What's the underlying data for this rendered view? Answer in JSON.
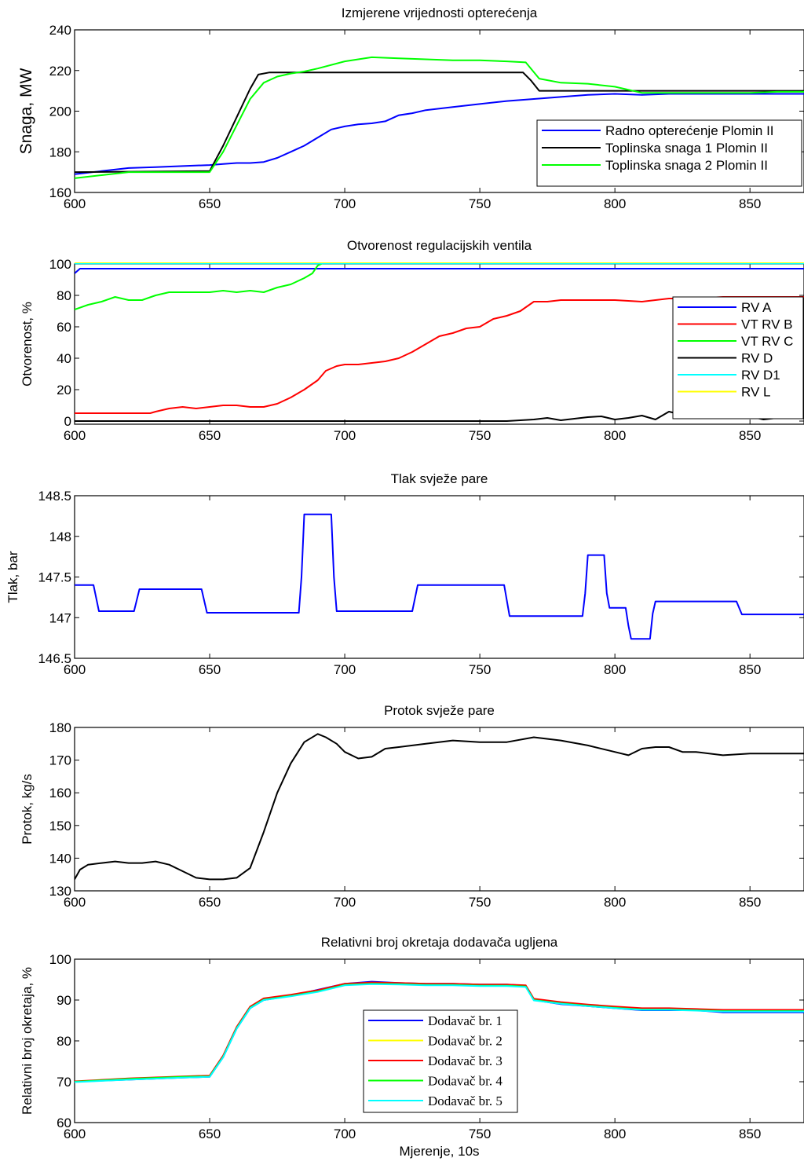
{
  "chart_data": [
    {
      "type": "line",
      "title": "Izmjerene vrijednosti opterećenja",
      "ylabel": "Snaga, MW",
      "xlabel": "",
      "xlim": [
        600,
        870
      ],
      "ylim": [
        160,
        240
      ],
      "xticks": [
        600,
        650,
        700,
        750,
        800,
        850
      ],
      "yticks": [
        160,
        180,
        200,
        220,
        240
      ],
      "grid": false,
      "legend": "lower-right",
      "series": [
        {
          "name": "Radno opterećenje Plomin II",
          "color": "#0000ff",
          "x": [
            600,
            610,
            620,
            630,
            640,
            650,
            655,
            660,
            665,
            670,
            675,
            680,
            685,
            690,
            695,
            700,
            705,
            710,
            715,
            720,
            725,
            730,
            740,
            750,
            760,
            770,
            780,
            790,
            800,
            810,
            820,
            830,
            840,
            850,
            860,
            870
          ],
          "y": [
            169,
            170.5,
            172,
            172.5,
            173,
            173.5,
            174,
            174.5,
            174.5,
            175,
            177,
            180,
            183,
            187,
            191,
            192.5,
            193.5,
            194,
            195,
            198,
            199,
            200.5,
            202,
            203.5,
            205,
            206,
            207,
            208,
            208.5,
            208,
            208.5,
            208.5,
            208.5,
            208.5,
            208.5,
            208.5
          ]
        },
        {
          "name": "Toplinska snaga 1 Plomin II",
          "color": "#000000",
          "x": [
            600,
            650,
            655,
            660,
            665,
            668,
            672,
            700,
            766,
            769,
            772,
            870
          ],
          "y": [
            170,
            170.5,
            183,
            197,
            211,
            218,
            219,
            219,
            219,
            215,
            210,
            210
          ]
        },
        {
          "name": "Toplinska snaga 2 Plomin II",
          "color": "#00ff00",
          "x": [
            600,
            610,
            620,
            640,
            650,
            655,
            660,
            665,
            670,
            675,
            680,
            685,
            690,
            700,
            710,
            720,
            730,
            740,
            750,
            760,
            767,
            772,
            780,
            790,
            800,
            810,
            820,
            830,
            840,
            850,
            860,
            870
          ],
          "y": [
            167,
            168.5,
            170,
            170,
            170,
            180,
            193,
            206,
            214,
            217,
            218.5,
            219.5,
            221,
            224.5,
            226.5,
            226,
            225.5,
            225,
            225,
            224.5,
            224,
            216,
            214,
            213.5,
            212,
            209,
            209,
            209,
            209,
            209,
            209.5,
            209.5
          ]
        }
      ]
    },
    {
      "type": "line",
      "title": "Otvorenost regulacijskih ventila",
      "ylabel": "Otvorenost, %",
      "xlabel": "",
      "xlim": [
        600,
        870
      ],
      "ylim": [
        -2,
        100
      ],
      "xticks": [
        600,
        650,
        700,
        750,
        800,
        850
      ],
      "yticks": [
        0,
        20,
        40,
        60,
        80,
        100
      ],
      "grid": false,
      "legend": "right",
      "series": [
        {
          "name": "RV A",
          "color": "#0000ff",
          "x": [
            600,
            602,
            870
          ],
          "y": [
            94,
            97,
            97
          ]
        },
        {
          "name": "VT RV B",
          "color": "#ff0000",
          "x": [
            600,
            610,
            620,
            628,
            630,
            635,
            640,
            645,
            650,
            655,
            660,
            665,
            670,
            675,
            680,
            685,
            690,
            693,
            697,
            700,
            705,
            710,
            715,
            720,
            725,
            730,
            735,
            740,
            745,
            750,
            755,
            760,
            765,
            770,
            775,
            780,
            790,
            800,
            810,
            820,
            830,
            840,
            850,
            860,
            870
          ],
          "y": [
            5,
            5,
            5,
            5,
            6,
            8,
            9,
            8,
            9,
            10,
            10,
            9,
            9,
            11,
            15,
            20,
            26,
            32,
            35,
            36,
            36,
            37,
            38,
            40,
            44,
            49,
            54,
            56,
            59,
            60,
            65,
            67,
            70,
            76,
            76,
            77,
            77,
            77,
            76,
            78,
            78,
            79,
            79,
            79,
            79
          ]
        },
        {
          "name": "VT RV C",
          "color": "#00ff00",
          "x": [
            600,
            605,
            610,
            615,
            620,
            625,
            630,
            635,
            640,
            645,
            650,
            655,
            660,
            665,
            670,
            675,
            680,
            685,
            688,
            690,
            692,
            870
          ],
          "y": [
            71,
            74,
            76,
            79,
            77,
            77,
            80,
            82,
            82,
            82,
            82,
            83,
            82,
            83,
            82,
            85,
            87,
            91,
            94,
            99,
            100.5,
            100.5
          ]
        },
        {
          "name": "RV D",
          "color": "#000000",
          "x": [
            600,
            760,
            765,
            770,
            775,
            780,
            785,
            790,
            795,
            800,
            805,
            810,
            815,
            820,
            825,
            830,
            835,
            840,
            845,
            850,
            855,
            860,
            865,
            870
          ],
          "y": [
            0,
            0,
            0.5,
            1,
            2,
            0.5,
            1.5,
            2.5,
            3,
            1,
            2,
            3.5,
            1,
            6,
            4,
            2,
            3,
            4,
            2,
            3,
            1,
            2,
            4,
            3
          ]
        },
        {
          "name": "RV D1",
          "color": "#00ffff",
          "x": [
            600,
            870
          ],
          "y": [
            100.3,
            100.3
          ]
        },
        {
          "name": "RV L",
          "color": "#ffff00",
          "x": [
            600,
            870
          ],
          "y": [
            101,
            101
          ]
        }
      ]
    },
    {
      "type": "line",
      "title": "Tlak svježe pare",
      "ylabel": "Tlak, bar",
      "xlabel": "",
      "xlim": [
        600,
        870
      ],
      "ylim": [
        146.5,
        148.5
      ],
      "xticks": [
        600,
        650,
        700,
        750,
        800,
        850
      ],
      "yticks": [
        146.5,
        147,
        147.5,
        148,
        148.5
      ],
      "grid": false,
      "series": [
        {
          "name": "",
          "color": "#0000ff",
          "x": [
            600,
            607,
            609,
            622,
            624,
            647,
            649,
            683,
            684,
            685,
            695,
            696,
            697,
            725,
            727,
            759,
            761,
            788,
            789,
            790,
            796,
            797,
            798,
            804,
            805,
            806,
            813,
            814,
            815,
            845,
            847,
            870
          ],
          "y": [
            147.4,
            147.4,
            147.08,
            147.08,
            147.35,
            147.35,
            147.06,
            147.06,
            147.5,
            148.27,
            148.27,
            147.5,
            147.08,
            147.08,
            147.4,
            147.4,
            147.02,
            147.02,
            147.3,
            147.77,
            147.77,
            147.3,
            147.12,
            147.12,
            146.9,
            146.74,
            146.74,
            147.05,
            147.2,
            147.2,
            147.04,
            147.04
          ]
        }
      ]
    },
    {
      "type": "line",
      "title": "Protok svježe pare",
      "ylabel": "Protok, kg/s",
      "xlabel": "",
      "xlim": [
        600,
        870
      ],
      "ylim": [
        130,
        180
      ],
      "xticks": [
        600,
        650,
        700,
        750,
        800,
        850
      ],
      "yticks": [
        130,
        140,
        150,
        160,
        170,
        180
      ],
      "grid": false,
      "series": [
        {
          "name": "",
          "color": "#000000",
          "x": [
            600,
            602,
            605,
            610,
            615,
            620,
            625,
            630,
            635,
            640,
            645,
            650,
            655,
            660,
            665,
            670,
            675,
            680,
            685,
            690,
            693,
            697,
            700,
            705,
            710,
            715,
            720,
            730,
            740,
            750,
            760,
            770,
            780,
            790,
            800,
            805,
            810,
            815,
            820,
            825,
            830,
            840,
            850,
            860,
            870
          ],
          "y": [
            133.5,
            136.5,
            138,
            138.5,
            139,
            138.5,
            138.5,
            139,
            138,
            136,
            134,
            133.5,
            133.5,
            134,
            137,
            148,
            160,
            169,
            175.5,
            178,
            177,
            175,
            172.5,
            170.5,
            171,
            173.5,
            174,
            175,
            176,
            175.5,
            175.5,
            177,
            176,
            174.5,
            172.5,
            171.5,
            173.5,
            174,
            174,
            172.5,
            172.5,
            171.5,
            172,
            172,
            172
          ]
        }
      ]
    },
    {
      "type": "line",
      "title": "Relativni broj okretaja dodavača ugljena",
      "ylabel": "Relativni broj okretaja, %",
      "xlabel": "Mjerenje, 10s",
      "xlim": [
        600,
        870
      ],
      "ylim": [
        60,
        100
      ],
      "xticks": [
        600,
        650,
        700,
        750,
        800,
        850
      ],
      "yticks": [
        60,
        70,
        80,
        90,
        100
      ],
      "grid": false,
      "legend": "bottom-center",
      "series": [
        {
          "name": "Dodavač br. 1",
          "color": "#0000ff",
          "x": [
            600,
            620,
            640,
            650,
            655,
            660,
            665,
            670,
            680,
            690,
            700,
            710,
            720,
            730,
            740,
            750,
            760,
            767,
            770,
            780,
            790,
            800,
            810,
            820,
            830,
            840,
            850,
            860,
            870
          ],
          "y": [
            70,
            70.5,
            71,
            71.2,
            76,
            83,
            88,
            90,
            91,
            92.5,
            94,
            94.5,
            94.2,
            94,
            94,
            93.8,
            93.8,
            93.5,
            90,
            89,
            88.5,
            88,
            87.5,
            87.5,
            87.5,
            87,
            87,
            87,
            87
          ]
        },
        {
          "name": "Dodavač br. 2",
          "color": "#ffff00",
          "x": [
            600,
            620,
            640,
            650,
            655,
            660,
            665,
            670,
            680,
            690,
            700,
            710,
            720,
            730,
            740,
            750,
            760,
            767,
            770,
            780,
            790,
            800,
            810,
            820,
            830,
            840,
            850,
            860,
            870
          ],
          "y": [
            70,
            70.6,
            71.1,
            71.4,
            76.2,
            83.2,
            88.2,
            90.2,
            91.1,
            92.2,
            93.8,
            94.1,
            94,
            93.8,
            93.8,
            93.6,
            93.6,
            93.4,
            90.1,
            89.3,
            88.7,
            88.2,
            87.8,
            87.8,
            87.6,
            87.4,
            87.4,
            87.4,
            87.4
          ]
        },
        {
          "name": "Dodavač br. 3",
          "color": "#ff0000",
          "x": [
            600,
            620,
            640,
            650,
            655,
            660,
            665,
            670,
            680,
            690,
            700,
            710,
            720,
            730,
            740,
            750,
            760,
            767,
            770,
            780,
            790,
            800,
            810,
            820,
            830,
            840,
            850,
            860,
            870
          ],
          "y": [
            70.1,
            70.8,
            71.3,
            71.5,
            76.4,
            83.4,
            88.4,
            90.4,
            91.3,
            92.4,
            94,
            94.3,
            94.2,
            94,
            94,
            93.8,
            93.8,
            93.6,
            90.3,
            89.5,
            88.9,
            88.4,
            88,
            88,
            87.8,
            87.6,
            87.6,
            87.6,
            87.6
          ]
        },
        {
          "name": "Dodavač br. 4",
          "color": "#00ff00",
          "x": [
            600,
            620,
            640,
            650,
            655,
            660,
            665,
            670,
            680,
            690,
            700,
            710,
            720,
            730,
            740,
            750,
            760,
            767,
            770,
            780,
            790,
            800,
            810,
            820,
            830,
            840,
            850,
            860,
            870
          ],
          "y": [
            70,
            70.7,
            71.2,
            71.3,
            76.1,
            83.1,
            88.1,
            90.1,
            91,
            92.1,
            93.7,
            94,
            93.9,
            93.7,
            93.7,
            93.5,
            93.5,
            93.3,
            90,
            89.2,
            88.6,
            88.1,
            87.7,
            87.7,
            87.5,
            87.3,
            87.3,
            87.3,
            87.3
          ]
        },
        {
          "name": "Dodavač br. 5",
          "color": "#00ffff",
          "x": [
            600,
            620,
            640,
            650,
            655,
            660,
            665,
            670,
            680,
            690,
            700,
            710,
            720,
            730,
            740,
            750,
            760,
            767,
            770,
            780,
            790,
            800,
            810,
            820,
            830,
            840,
            850,
            860,
            870
          ],
          "y": [
            69.9,
            70.5,
            71,
            71.2,
            76,
            83,
            88,
            90,
            90.9,
            92,
            93.6,
            93.9,
            93.8,
            93.6,
            93.6,
            93.4,
            93.4,
            93.2,
            89.9,
            89.1,
            88.5,
            88,
            87.6,
            87.6,
            87.4,
            87.2,
            87.2,
            87.2,
            87.2
          ]
        }
      ]
    }
  ]
}
